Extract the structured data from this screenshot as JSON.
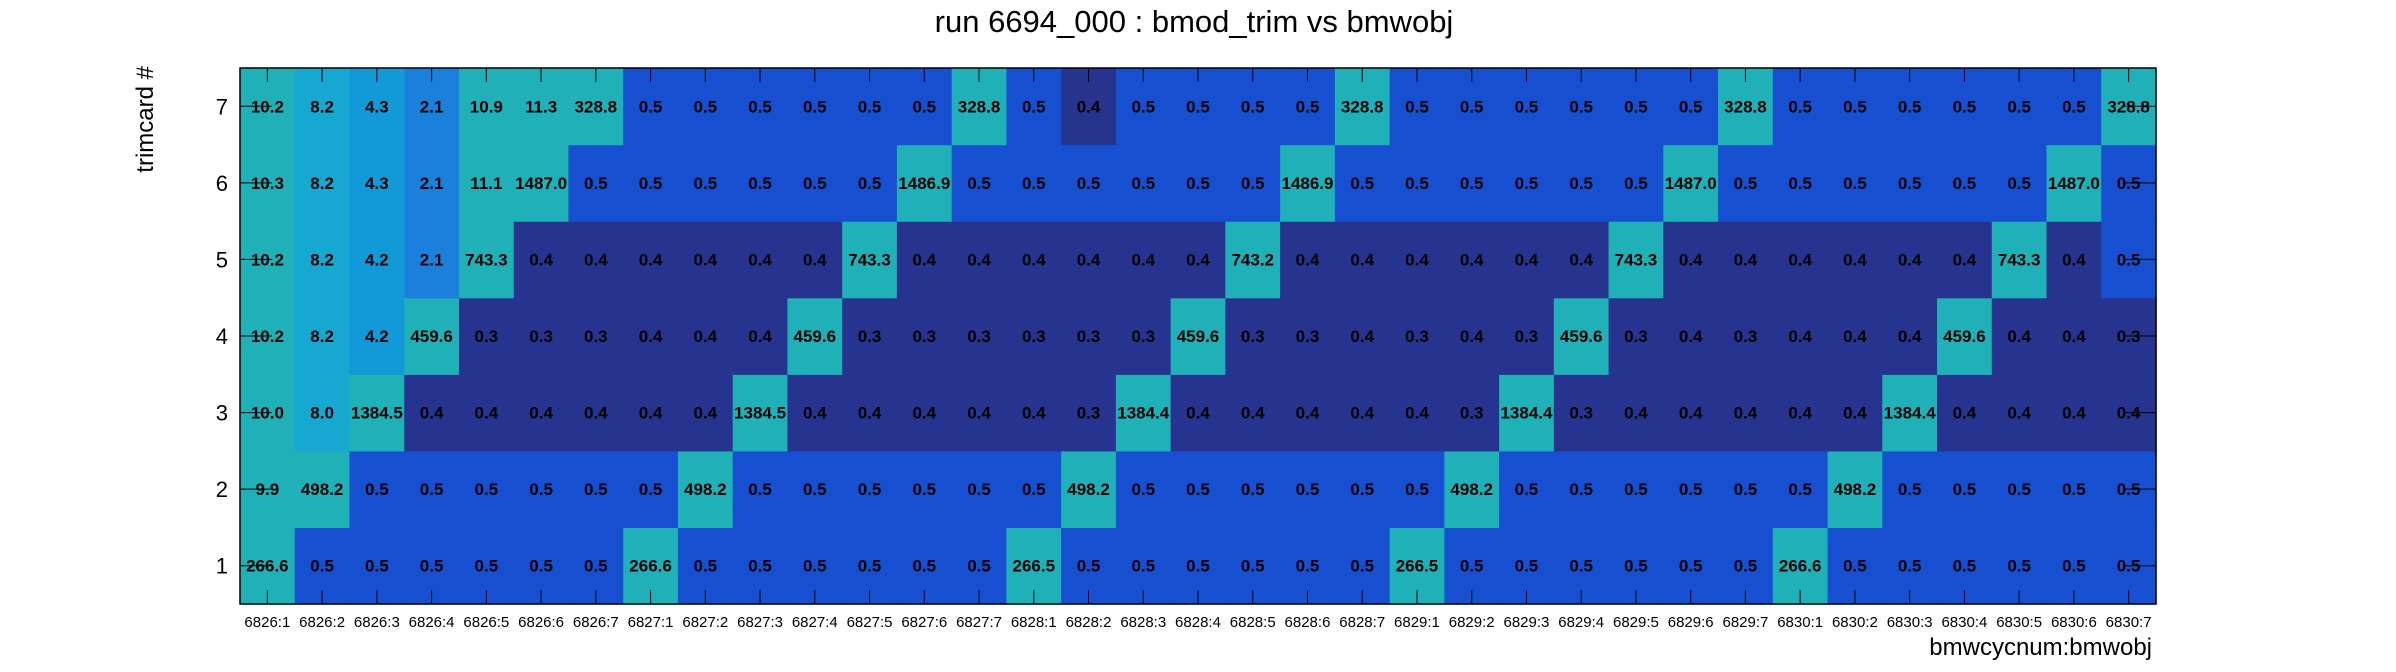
{
  "chart_data": {
    "type": "heatmap",
    "title": "run 6694_000 : bmod_trim vs bmwobj",
    "xlabel": "bmwcycnum:bmwobj",
    "ylabel": "trimcard #",
    "x_categories": [
      "6826:1",
      "6826:2",
      "6826:3",
      "6826:4",
      "6826:5",
      "6826:6",
      "6826:7",
      "6827:1",
      "6827:2",
      "6827:3",
      "6827:4",
      "6827:5",
      "6827:6",
      "6827:7",
      "6828:1",
      "6828:2",
      "6828:3",
      "6828:4",
      "6828:5",
      "6828:6",
      "6828:7",
      "6829:1",
      "6829:2",
      "6829:3",
      "6829:4",
      "6829:5",
      "6829:6",
      "6829:7",
      "6830:1",
      "6830:2",
      "6830:3",
      "6830:4",
      "6830:5",
      "6830:6",
      "6830:7"
    ],
    "y_categories": [
      "1",
      "2",
      "3",
      "4",
      "5",
      "6",
      "7"
    ],
    "colors": {
      "low": "#26348f",
      "mid_low": "#1650d0",
      "mid": "#1590d8",
      "teal": "#20b0b8",
      "gold_dim": "#e0bc48",
      "gold": "#f6c63a",
      "yellow": "#fbed18"
    },
    "rows": [
      {
        "trimcard": "1",
        "labels": [
          "266.6",
          "0.5",
          "0.5",
          "0.5",
          "0.5",
          "0.5",
          "0.5",
          "266.6",
          "0.5",
          "0.5",
          "0.5",
          "0.5",
          "0.5",
          "0.5",
          "266.5",
          "0.5",
          "0.5",
          "0.5",
          "0.5",
          "0.5",
          "0.5",
          "266.5",
          "0.5",
          "0.5",
          "0.5",
          "0.5",
          "0.5",
          "0.5",
          "266.6",
          "0.5",
          "0.5",
          "0.5",
          "0.5",
          "0.5",
          "0.5"
        ]
      },
      {
        "trimcard": "2",
        "labels": [
          "9.9",
          "498.2",
          "0.5",
          "0.5",
          "0.5",
          "0.5",
          "0.5",
          "0.5",
          "498.2",
          "0.5",
          "0.5",
          "0.5",
          "0.5",
          "0.5",
          "0.5",
          "498.2",
          "0.5",
          "0.5",
          "0.5",
          "0.5",
          "0.5",
          "0.5",
          "498.2",
          "0.5",
          "0.5",
          "0.5",
          "0.5",
          "0.5",
          "0.5",
          "498.2",
          "0.5",
          "0.5",
          "0.5",
          "0.5",
          "0.5"
        ]
      },
      {
        "trimcard": "3",
        "labels": [
          "10.0",
          "8.0",
          "1384.5",
          "0.4",
          "0.4",
          "0.4",
          "0.4",
          "0.4",
          "0.4",
          "1384.5",
          "0.4",
          "0.4",
          "0.4",
          "0.4",
          "0.4",
          "0.3",
          "1384.4",
          "0.4",
          "0.4",
          "0.4",
          "0.4",
          "0.4",
          "0.3",
          "1384.4",
          "0.3",
          "0.4",
          "0.4",
          "0.4",
          "0.4",
          "0.4",
          "1384.4",
          "0.4",
          "0.4",
          "0.4",
          "0.4"
        ]
      },
      {
        "trimcard": "4",
        "labels": [
          "10.2",
          "8.2",
          "4.2",
          "459.6",
          "0.3",
          "0.3",
          "0.3",
          "0.4",
          "0.4",
          "0.4",
          "459.6",
          "0.3",
          "0.3",
          "0.3",
          "0.3",
          "0.3",
          "0.3",
          "459.6",
          "0.3",
          "0.3",
          "0.4",
          "0.3",
          "0.4",
          "0.3",
          "459.6",
          "0.3",
          "0.4",
          "0.3",
          "0.4",
          "0.4",
          "0.4",
          "459.6",
          "0.4",
          "0.4",
          "0.3"
        ]
      },
      {
        "trimcard": "5",
        "labels": [
          "10.2",
          "8.2",
          "4.2",
          "2.1",
          "743.3",
          "0.4",
          "0.4",
          "0.4",
          "0.4",
          "0.4",
          "0.4",
          "743.3",
          "0.4",
          "0.4",
          "0.4",
          "0.4",
          "0.4",
          "0.4",
          "743.2",
          "0.4",
          "0.4",
          "0.4",
          "0.4",
          "0.4",
          "0.4",
          "743.3",
          "0.4",
          "0.4",
          "0.4",
          "0.4",
          "0.4",
          "0.4",
          "743.3",
          "0.4",
          "0.5"
        ]
      },
      {
        "trimcard": "6",
        "labels": [
          "10.3",
          "8.2",
          "4.3",
          "2.1",
          "11.1",
          "1487.0",
          "0.5",
          "0.5",
          "0.5",
          "0.5",
          "0.5",
          "0.5",
          "1486.9",
          "0.5",
          "0.5",
          "0.5",
          "0.5",
          "0.5",
          "0.5",
          "1486.9",
          "0.5",
          "0.5",
          "0.5",
          "0.5",
          "0.5",
          "0.5",
          "1487.0",
          "0.5",
          "0.5",
          "0.5",
          "0.5",
          "0.5",
          "0.5",
          "1487.0",
          "0.5"
        ]
      },
      {
        "trimcard": "7",
        "labels": [
          "10.2",
          "8.2",
          "4.3",
          "2.1",
          "10.9",
          "11.3",
          "328.8",
          "0.5",
          "0.5",
          "0.5",
          "0.5",
          "0.5",
          "0.5",
          "328.8",
          "0.5",
          "0.4",
          "0.5",
          "0.5",
          "0.5",
          "0.5",
          "328.8",
          "0.5",
          "0.5",
          "0.5",
          "0.5",
          "0.5",
          "0.5",
          "328.8",
          "0.5",
          "0.5",
          "0.5",
          "0.5",
          "0.5",
          "0.5",
          "328.8"
        ]
      }
    ]
  }
}
